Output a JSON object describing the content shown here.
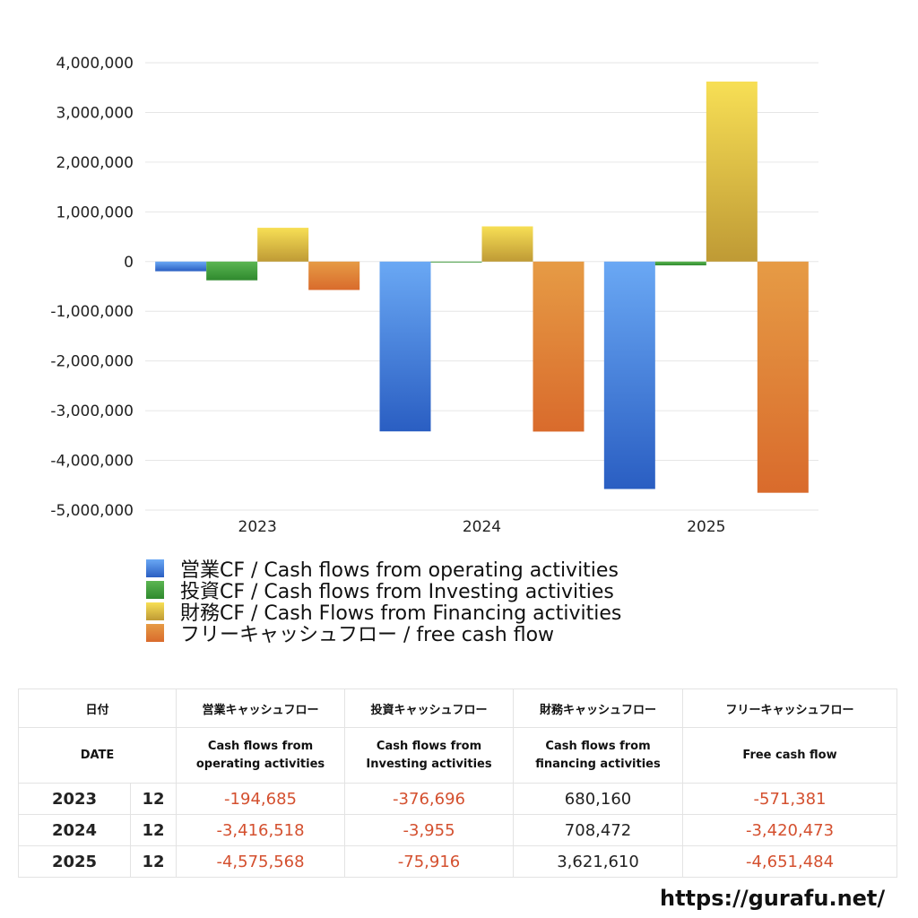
{
  "chart_data": {
    "type": "bar",
    "categories": [
      "2023",
      "2024",
      "2025"
    ],
    "series": [
      {
        "name": "営業CF / Cash flows from operating activities",
        "values": [
          -194685,
          -3416518,
          -4575568
        ],
        "color": "#3c7fe0"
      },
      {
        "name": "投資CF / Cash flows from Investing activities",
        "values": [
          -376696,
          -3955,
          -75916
        ],
        "color": "#3f9a3a"
      },
      {
        "name": "財務CF / Cash Flows from Financing activities",
        "values": [
          680160,
          708472,
          3621610
        ],
        "color": "#e0c040"
      },
      {
        "name": "フリーキャッシュフロー / free cash flow",
        "values": [
          -571381,
          -3420473,
          -4651484
        ],
        "color": "#e08030"
      }
    ],
    "yticks": [
      "4,000,000",
      "3,000,000",
      "2,000,000",
      "1,000,000",
      "0",
      "-1,000,000",
      "-2,000,000",
      "-3,000,000",
      "-4,000,000",
      "-5,000,000"
    ],
    "ylim": [
      -5000000,
      4000000
    ],
    "grid": true,
    "legend": "bottom"
  },
  "table": {
    "header_jp": [
      "日付",
      "営業キャッシュフロー",
      "投資キャッシュフロー",
      "財務キャッシュフロー",
      "フリーキャッシュフロー"
    ],
    "header_en": [
      "DATE",
      "Cash flows from",
      "operating activities",
      "Cash flows from",
      "Investing activities",
      "Cash flows from",
      "financing activities",
      "Free cash flow"
    ],
    "rows": [
      {
        "year": "2023",
        "month": "12",
        "op": "-194,685",
        "inv": "-376,696",
        "fin": "680,160",
        "free": "-571,381"
      },
      {
        "year": "2024",
        "month": "12",
        "op": "-3,416,518",
        "inv": "-3,955",
        "fin": "708,472",
        "free": "-3,420,473"
      },
      {
        "year": "2025",
        "month": "12",
        "op": "-4,575,568",
        "inv": "-75,916",
        "fin": "3,621,610",
        "free": "-4,651,484"
      }
    ]
  },
  "site_url": "https://gurafu.net/"
}
